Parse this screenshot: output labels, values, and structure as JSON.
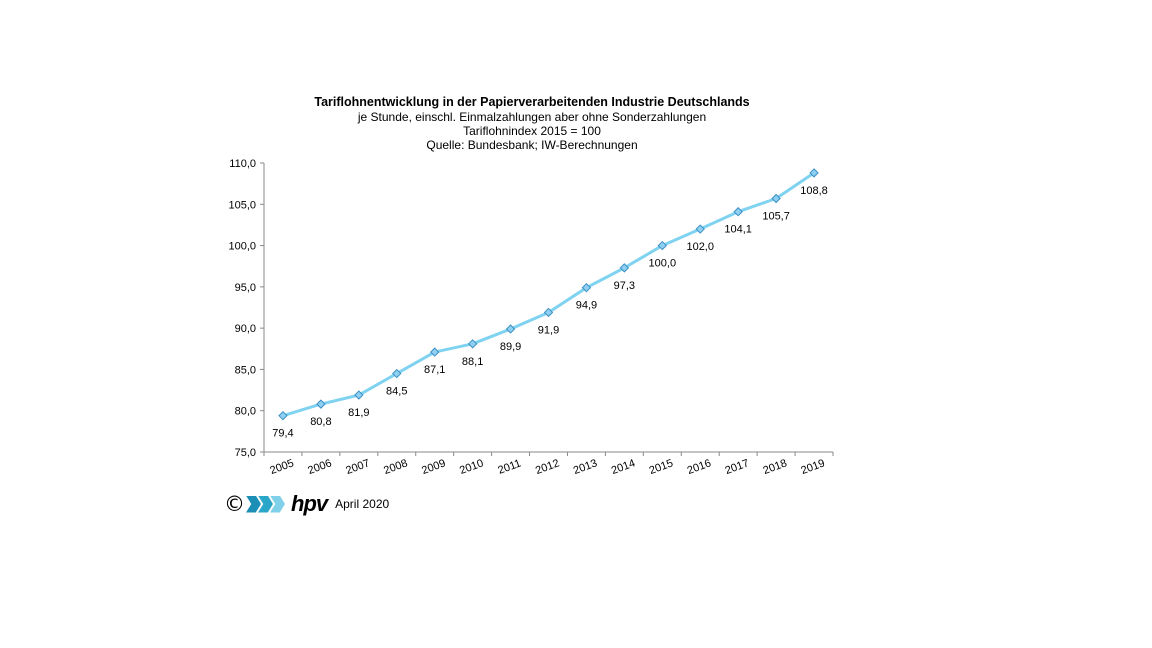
{
  "chart_data": {
    "type": "line",
    "title": "Tariflohnentwicklung in der Papierverarbeitenden Industrie Deutschlands",
    "subtitle_lines": [
      "je Stunde, einschl. Einmalzahlungen  aber ohne Sonderzahlungen",
      "Tariflohnindex  2015  = 100",
      "Quelle: Bundesbank; IW-Berechnungen"
    ],
    "categories": [
      "2005",
      "2006",
      "2007",
      "2008",
      "2009",
      "2010",
      "2011",
      "2012",
      "2013",
      "2014",
      "2015",
      "2016",
      "2017",
      "2018",
      "2019"
    ],
    "values": [
      79.4,
      80.8,
      81.9,
      84.5,
      87.1,
      88.1,
      89.9,
      91.9,
      94.9,
      97.3,
      100.0,
      102.0,
      104.1,
      105.7,
      108.8
    ],
    "data_labels": [
      "79,4",
      "80,8",
      "81,9",
      "84,5",
      "87,1",
      "88,1",
      "89,9",
      "91,9",
      "94,9",
      "97,3",
      "100,0",
      "102,0",
      "104,1",
      "105,7",
      "108,8"
    ],
    "ylim": [
      75,
      110
    ],
    "yticks": [
      "75,0",
      "80,0",
      "85,0",
      "90,0",
      "95,0",
      "100,0",
      "105,0",
      "110,0"
    ],
    "xlabel": "",
    "ylabel": "",
    "grid": false,
    "line_color": "#7fd3f0",
    "marker_fill": "#8fd0f2",
    "marker_stroke": "#3a8fc2"
  },
  "footer": {
    "copyright": "©",
    "logo_text": "hpv",
    "date": "April 2020",
    "logo_colors": [
      "#1b8fb5",
      "#2aa6c8",
      "#7fd0e8"
    ]
  }
}
